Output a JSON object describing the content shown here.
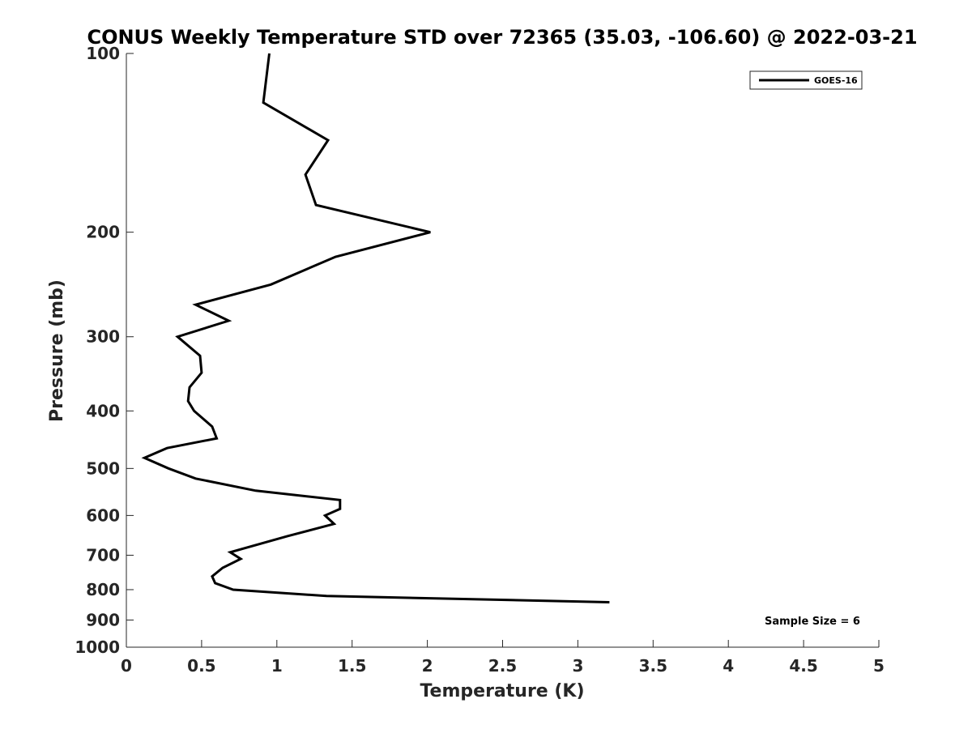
{
  "chart_data": {
    "type": "line",
    "title": "CONUS Weekly Temperature STD over 72365 (35.03, -106.60) @ 2022-03-21",
    "xlabel": "Temperature (K)",
    "ylabel": "Pressure (mb)",
    "xlim": [
      0,
      5
    ],
    "ylim": [
      100,
      1000
    ],
    "y_scale": "log",
    "y_reversed": true,
    "x_ticks": [
      0,
      0.5,
      1,
      1.5,
      2,
      2.5,
      3,
      3.5,
      4,
      4.5,
      5
    ],
    "x_tick_labels": [
      "0",
      "0.5",
      "1",
      "1.5",
      "2",
      "2.5",
      "3",
      "3.5",
      "4",
      "4.5",
      "5"
    ],
    "y_ticks": [
      100,
      200,
      300,
      400,
      500,
      600,
      700,
      800,
      900,
      1000
    ],
    "y_tick_labels": [
      "100",
      "200",
      "300",
      "400",
      "500",
      "600",
      "700",
      "800",
      "900",
      "1000"
    ],
    "grid": false,
    "legend_position": "top-right",
    "series": [
      {
        "name": "GOES-16",
        "color": "#000000",
        "x": [
          0.95,
          0.91,
          1.34,
          1.19,
          1.26,
          2.02,
          1.39,
          0.96,
          0.46,
          0.68,
          0.34,
          0.49,
          0.5,
          0.42,
          0.41,
          0.45,
          0.57,
          0.6,
          0.27,
          0.12,
          0.28,
          0.46,
          0.86,
          1.42,
          1.42,
          1.32,
          1.38,
          1.07,
          0.69,
          0.76,
          0.64,
          0.57,
          0.59,
          0.71,
          1.33,
          3.21
        ],
        "y": [
          100,
          121,
          140,
          160,
          180,
          200,
          220,
          245,
          265,
          282,
          300,
          323,
          345,
          365,
          385,
          400,
          425,
          445,
          462,
          480,
          500,
          520,
          545,
          565,
          585,
          600,
          620,
          650,
          692,
          710,
          735,
          760,
          780,
          800,
          820,
          840
        ]
      }
    ],
    "annotations": [
      "Sample Size = 6"
    ]
  }
}
